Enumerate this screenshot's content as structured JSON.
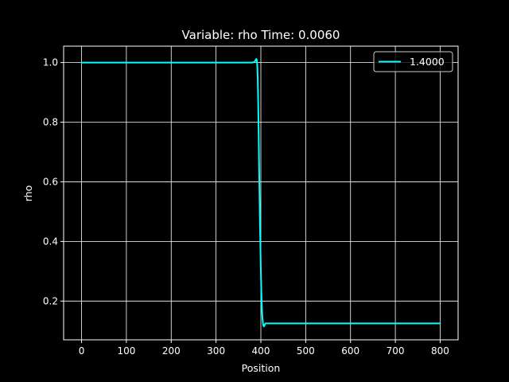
{
  "chart_data": {
    "type": "line",
    "title": "Variable: rho Time: 0.0060",
    "xlabel": "Position",
    "ylabel": "rho",
    "xlim": [
      -40,
      840
    ],
    "ylim": [
      0.07,
      1.055
    ],
    "xticks": [
      0,
      100,
      200,
      300,
      400,
      500,
      600,
      700,
      800
    ],
    "xtick_labels": [
      "0",
      "100",
      "200",
      "300",
      "400",
      "500",
      "600",
      "700",
      "800"
    ],
    "yticks": [
      0.2,
      0.4,
      0.6,
      0.8,
      1.0
    ],
    "ytick_labels": [
      "0.2",
      "0.4",
      "0.6",
      "0.8",
      "1.0"
    ],
    "grid": true,
    "legend": "top-right",
    "background": "#000000",
    "foreground": "#ffffff",
    "series": [
      {
        "name": "1.4000",
        "color": "#00ffff",
        "x": [
          0,
          100,
          200,
          300,
          380,
          386,
          388,
          390,
          391,
          392,
          393,
          394,
          395,
          396,
          397,
          398,
          399,
          400,
          401,
          402,
          403,
          404,
          405,
          406,
          407,
          408,
          409,
          410,
          412,
          414,
          420,
          500,
          600,
          700,
          800
        ],
        "y": [
          1.0,
          1.0,
          1.0,
          1.0,
          1.0,
          1.002,
          1.008,
          1.012,
          1.008,
          0.99,
          0.95,
          0.87,
          0.77,
          0.66,
          0.56,
          0.46,
          0.38,
          0.3,
          0.24,
          0.19,
          0.155,
          0.135,
          0.122,
          0.116,
          0.115,
          0.118,
          0.122,
          0.125,
          0.125,
          0.125,
          0.125,
          0.125,
          0.125,
          0.125,
          0.125
        ]
      }
    ]
  }
}
